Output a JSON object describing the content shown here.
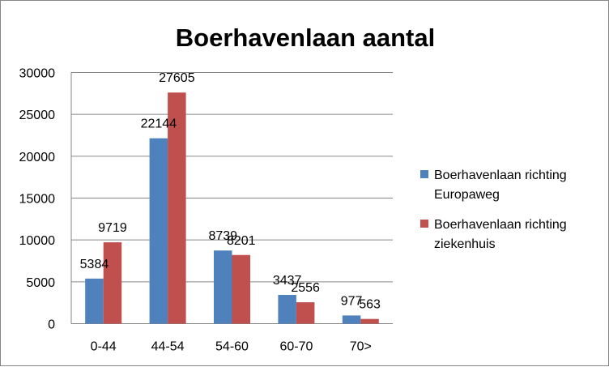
{
  "chart_data": {
    "type": "bar",
    "title": "Boerhavenlaan aantal",
    "xlabel": "",
    "ylabel": "",
    "categories": [
      "0-44",
      "44-54",
      "54-60",
      "60-70",
      "70>"
    ],
    "series": [
      {
        "name": "Boerhavenlaan richting Europaweg",
        "legend_lines": [
          "Boerhavenlaan richting",
          "Europaweg"
        ],
        "color": "#4F81BD",
        "values": [
          5384,
          22144,
          8739,
          3437,
          977
        ]
      },
      {
        "name": "Boerhavenlaan richting ziekenhuis",
        "legend_lines": [
          "Boerhavenlaan richting",
          "ziekenhuis"
        ],
        "color": "#C0504D",
        "values": [
          9719,
          27605,
          8201,
          2556,
          563
        ]
      }
    ],
    "ylim": [
      0,
      30000
    ],
    "yticks": [
      0,
      5000,
      10000,
      15000,
      20000,
      25000,
      30000
    ],
    "grid": true,
    "legend_position": "right",
    "data_labels": true
  }
}
